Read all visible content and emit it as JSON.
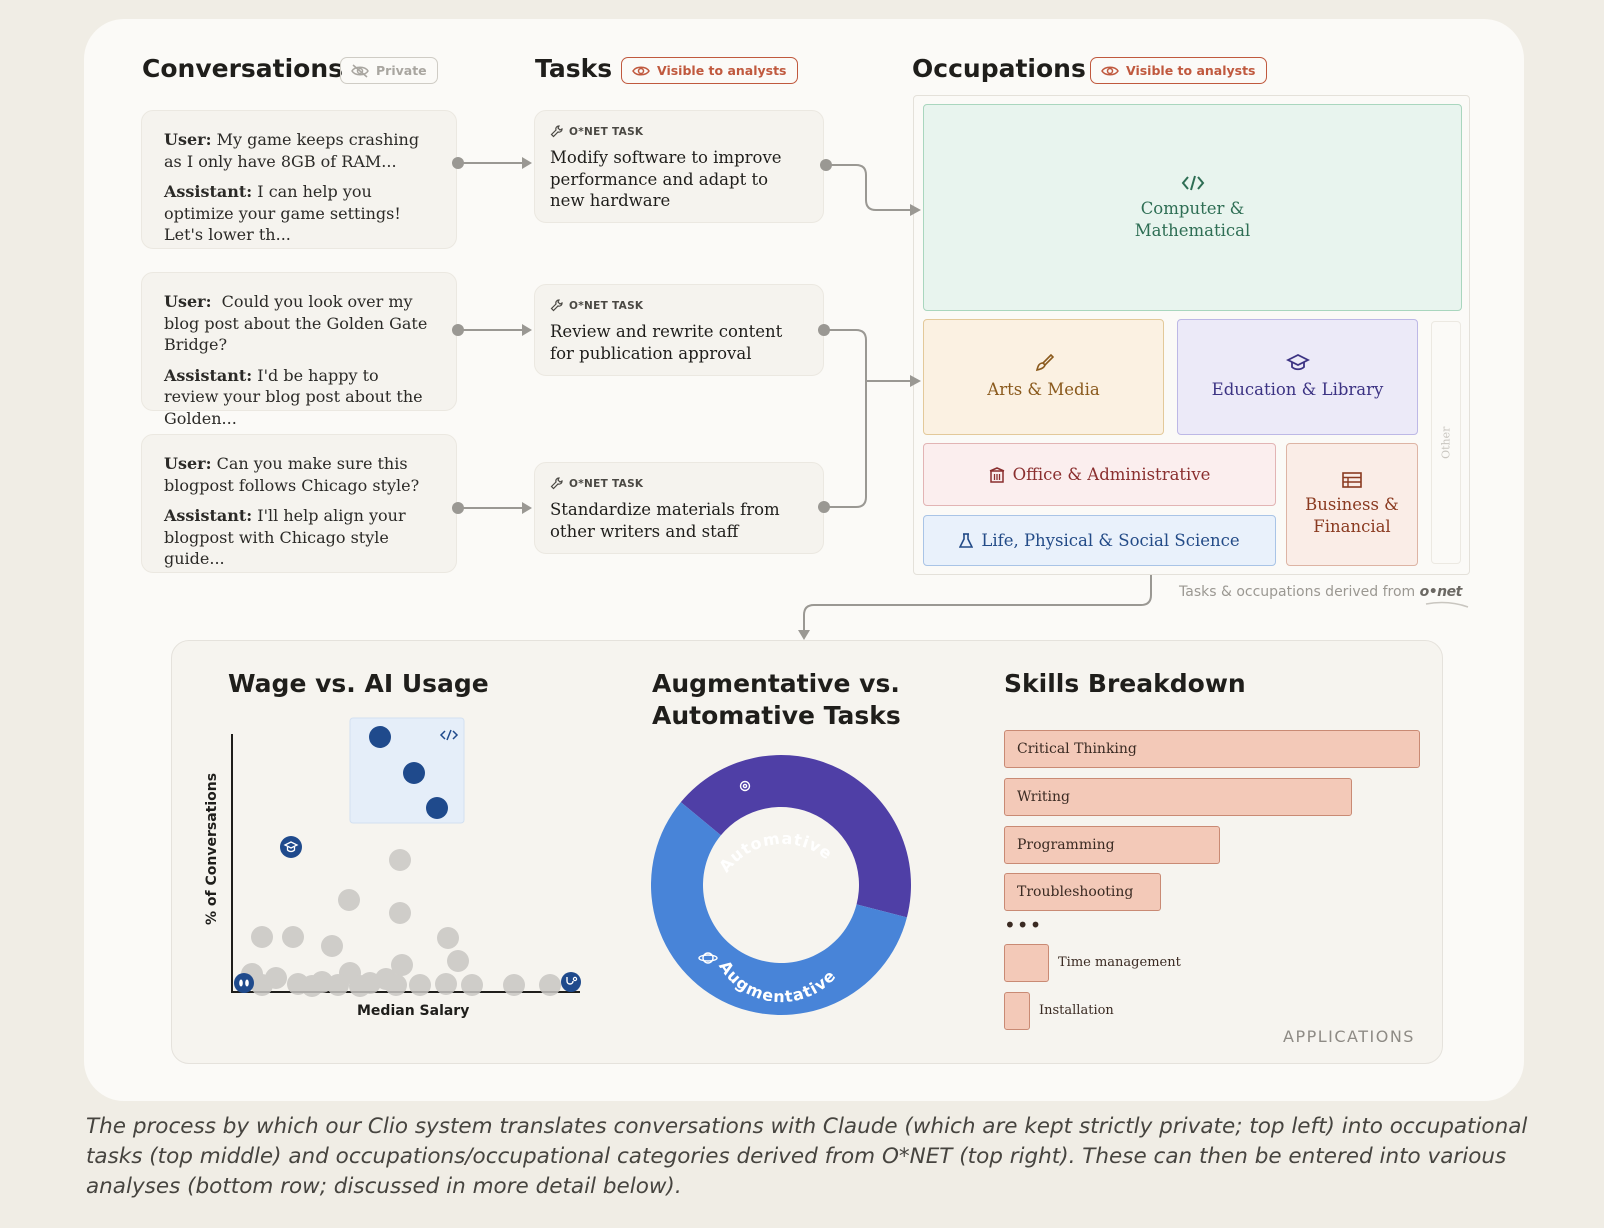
{
  "sections": {
    "conversations": "Conversations",
    "tasks": "Tasks",
    "occupations": "Occupations"
  },
  "badges": {
    "private": "Private",
    "visible": "Visible to analysts"
  },
  "conversations": [
    {
      "user_label": "User:",
      "user": "My game keeps crashing as I only have 8GB of RAM...",
      "assistant_label": "Assistant:",
      "assistant": "I can help you optimize your game settings! Let's lower th..."
    },
    {
      "user_label": "User:",
      "user": "Could you look over my blog post about the Golden Gate Bridge?",
      "assistant_label": "Assistant:",
      "assistant": "I'd be happy to review your blog post about the Golden..."
    },
    {
      "user_label": "User:",
      "user": "Can you make sure this blogpost follows Chicago style?",
      "assistant_label": "Assistant:",
      "assistant": "I'll help align your blogpost with Chicago style guide..."
    }
  ],
  "tasks": [
    {
      "tag": "O*NET TASK",
      "text": "Modify software to improve performance and adapt to new hardware"
    },
    {
      "tag": "O*NET TASK",
      "text": "Review and rewrite content for publication approval"
    },
    {
      "tag": "O*NET TASK",
      "text": "Standardize materials from other writers and staff"
    }
  ],
  "occupations": {
    "computer": "Computer & Mathematical",
    "arts": "Arts & Media",
    "education": "Education & Library",
    "other": "Other",
    "office": "Office & Administrative",
    "life": "Life, Physical & Social Science",
    "business": "Business & Financial"
  },
  "onet_note": {
    "text": "Tasks & occupations derived from",
    "logo": "o•net"
  },
  "analyses": {
    "wage_title": "Wage vs. AI Usage",
    "wage_ylabel": "% of Conversations",
    "wage_xlabel": "Median Salary",
    "donut_title_1": "Augmentative vs.",
    "donut_title_2": "Automative Tasks",
    "donut_automative": "Automative",
    "donut_augmentative": "Augmentative",
    "skills_title": "Skills Breakdown",
    "skills": [
      "Critical Thinking",
      "Writing",
      "Programming",
      "Troubleshooting"
    ],
    "skills_ellipsis": "•••",
    "skills_small": [
      "Time management",
      "Installation"
    ],
    "applications": "APPLICATIONS"
  },
  "chart_data": [
    {
      "type": "donut",
      "title": "Augmentative vs. Automative Tasks",
      "slices": [
        {
          "name": "Automative",
          "value": 0.43,
          "color": "#4f3fa6"
        },
        {
          "name": "Augmentative",
          "value": 0.57,
          "color": "#4884d8"
        }
      ]
    }
  ],
  "colors": {
    "accent": "#c0593e",
    "connector": "#9a9893",
    "dot_highlight": "#1f4a8c",
    "dot_gray": "#c9c7c3"
  },
  "caption": "The process by which our Clio system translates conversations with Claude (which are kept strictly private; top left) into occupational tasks (top middle) and occupations/occupational categories derived from O*NET (top right). These can then be entered into various analyses (bottom row; discussed in more detail below)."
}
